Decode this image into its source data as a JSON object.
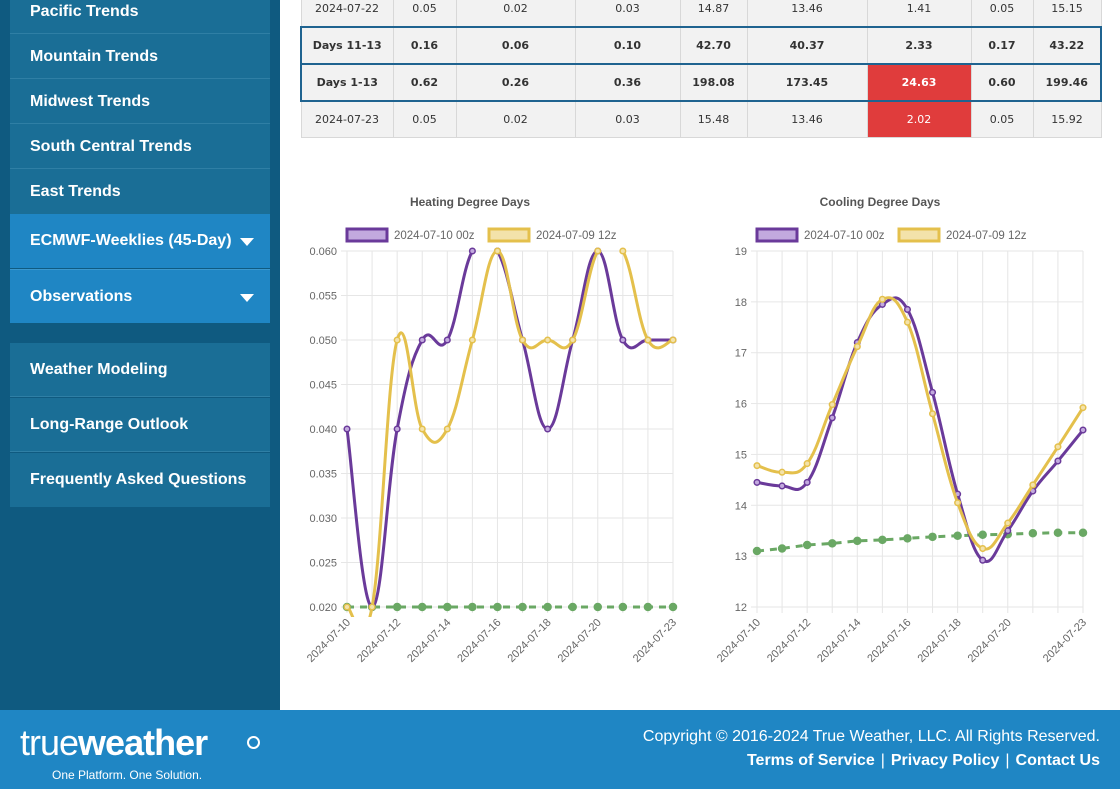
{
  "sidebar": {
    "trends": [
      "Pacific Trends",
      "Mountain Trends",
      "Midwest Trends",
      "South Central Trends",
      "East Trends"
    ],
    "ecmwf": "ECMWF-Weeklies (45-Day)",
    "observations": "Observations",
    "lower": [
      "Weather Modeling",
      "Long-Range Outlook",
      "Frequently Asked Questions"
    ]
  },
  "table": {
    "rows": [
      {
        "label": "2024-07-22",
        "cells": [
          "0.05",
          "0.02",
          "0.03",
          "14.87",
          "13.46",
          "1.41",
          "0.05",
          "15.15"
        ],
        "highlight": false,
        "red_index": -1
      },
      {
        "label": "Days 11-13",
        "cells": [
          "0.16",
          "0.06",
          "0.10",
          "42.70",
          "40.37",
          "2.33",
          "0.17",
          "43.22"
        ],
        "highlight": true,
        "red_index": -1
      },
      {
        "label": "Days 1-13",
        "cells": [
          "0.62",
          "0.26",
          "0.36",
          "198.08",
          "173.45",
          "24.63",
          "0.60",
          "199.46"
        ],
        "highlight": true,
        "red_index": 5
      },
      {
        "label": "2024-07-23",
        "cells": [
          "0.05",
          "0.02",
          "0.03",
          "15.48",
          "13.46",
          "2.02",
          "0.05",
          "15.92"
        ],
        "highlight": false,
        "red_index": 5
      }
    ]
  },
  "chart_data": [
    {
      "type": "line",
      "title": "Heating Degree Days",
      "x": [
        "2024-07-10",
        "2024-07-11",
        "2024-07-12",
        "2024-07-13",
        "2024-07-14",
        "2024-07-15",
        "2024-07-16",
        "2024-07-17",
        "2024-07-18",
        "2024-07-19",
        "2024-07-20",
        "2024-07-21",
        "2024-07-22",
        "2024-07-23"
      ],
      "xticks": [
        "2024-07-10",
        "2024-07-12",
        "2024-07-14",
        "2024-07-16",
        "2024-07-18",
        "2024-07-20",
        "2024-07-23"
      ],
      "yticks": [
        "0.060",
        "0.055",
        "0.050",
        "0.045",
        "0.040",
        "0.035",
        "0.030",
        "0.025",
        "0.020"
      ],
      "ylim": [
        0.02,
        0.06
      ],
      "series": [
        {
          "name": "2024-07-10 00z",
          "color": "#6a3a9a",
          "fill": "#c2a9de",
          "values": [
            0.04,
            0.02,
            0.04,
            0.05,
            0.05,
            0.06,
            0.06,
            0.05,
            0.04,
            0.05,
            0.06,
            0.05,
            0.05,
            0.05
          ]
        },
        {
          "name": "2024-07-09 12z",
          "color": "#e4c04c",
          "fill": "#f3e2aa",
          "values": [
            0.02,
            0.02,
            0.05,
            0.04,
            0.04,
            0.05,
            0.06,
            0.05,
            0.05,
            0.05,
            0.06,
            0.06,
            0.05,
            0.05
          ]
        },
        {
          "name": "",
          "color": "#6aa864",
          "dashed": true,
          "values": [
            0.02,
            0.02,
            0.02,
            0.02,
            0.02,
            0.02,
            0.02,
            0.02,
            0.02,
            0.02,
            0.02,
            0.02,
            0.02,
            0.02
          ]
        }
      ]
    },
    {
      "type": "line",
      "title": "Cooling Degree Days",
      "x": [
        "2024-07-10",
        "2024-07-11",
        "2024-07-12",
        "2024-07-13",
        "2024-07-14",
        "2024-07-15",
        "2024-07-16",
        "2024-07-17",
        "2024-07-18",
        "2024-07-19",
        "2024-07-20",
        "2024-07-21",
        "2024-07-22",
        "2024-07-23"
      ],
      "xticks": [
        "2024-07-10",
        "2024-07-12",
        "2024-07-14",
        "2024-07-16",
        "2024-07-18",
        "2024-07-20",
        "2024-07-23"
      ],
      "yticks": [
        "19",
        "18",
        "17",
        "16",
        "15",
        "14",
        "13",
        "12"
      ],
      "ylim": [
        12,
        19
      ],
      "series": [
        {
          "name": "2024-07-10 00z",
          "color": "#6a3a9a",
          "fill": "#c2a9de",
          "values": [
            14.45,
            14.38,
            14.45,
            15.72,
            17.2,
            17.95,
            17.85,
            16.22,
            14.22,
            12.92,
            13.5,
            14.28,
            14.87,
            15.48
          ]
        },
        {
          "name": "2024-07-09 12z",
          "color": "#e4c04c",
          "fill": "#f3e2aa",
          "values": [
            14.78,
            14.65,
            14.82,
            15.98,
            17.12,
            18.05,
            17.6,
            15.8,
            14.05,
            13.15,
            13.65,
            14.4,
            15.15,
            15.92
          ]
        },
        {
          "name": "",
          "color": "#6aa864",
          "dashed": true,
          "values": [
            13.1,
            13.15,
            13.22,
            13.25,
            13.3,
            13.32,
            13.35,
            13.38,
            13.4,
            13.42,
            13.43,
            13.45,
            13.46,
            13.46
          ]
        }
      ]
    }
  ],
  "footer": {
    "logo_true": "true",
    "logo_weather": "weather",
    "tagline": "One Platform. One Solution.",
    "copyright": "Copyright © 2016-2024 True Weather, LLC. All Rights Reserved.",
    "links": [
      "Terms of Service",
      "Privacy Policy",
      "Contact Us"
    ]
  }
}
